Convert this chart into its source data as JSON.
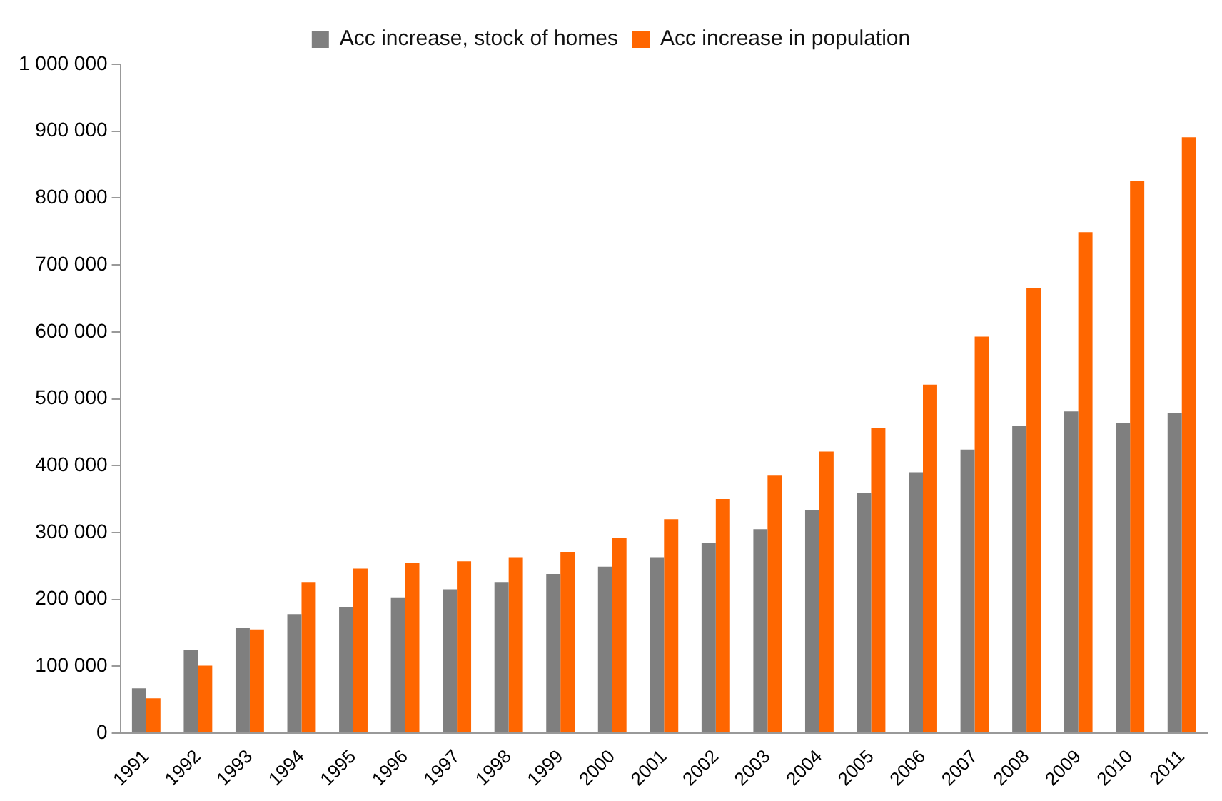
{
  "chart_data": {
    "type": "bar",
    "categories": [
      "1991",
      "1992",
      "1993",
      "1994",
      "1995",
      "1996",
      "1997",
      "1998",
      "1999",
      "2000",
      "2001",
      "2002",
      "2003",
      "2004",
      "2005",
      "2006",
      "2007",
      "2008",
      "2009",
      "2010",
      "2011"
    ],
    "series": [
      {
        "name": "Acc increase, stock of homes",
        "color": "#7f7f7f",
        "values": [
          67000,
          124000,
          158000,
          178000,
          189000,
          203000,
          215000,
          226000,
          238000,
          249000,
          263000,
          285000,
          305000,
          333000,
          359000,
          390000,
          424000,
          459000,
          481000,
          464000,
          479000
        ]
      },
      {
        "name": "Acc increase in population",
        "color": "#ff6600",
        "values": [
          52000,
          101000,
          155000,
          226000,
          246000,
          254000,
          257000,
          263000,
          271000,
          292000,
          320000,
          350000,
          385000,
          421000,
          456000,
          521000,
          593000,
          666000,
          749000,
          826000,
          891000
        ]
      }
    ],
    "ylim": [
      0,
      1000000
    ],
    "yticks": [
      0,
      {
        "value": 100000,
        "label": "100 000"
      },
      {
        "value": 200000,
        "label": "200 000"
      },
      {
        "value": 300000,
        "label": "300 000"
      },
      {
        "value": 400000,
        "label": "400 000"
      },
      {
        "value": 500000,
        "label": "500 000"
      },
      {
        "value": 600000,
        "label": "600 000"
      },
      {
        "value": 700000,
        "label": "700 000"
      },
      {
        "value": 800000,
        "label": "800 000"
      },
      {
        "value": 900000,
        "label": "900 000"
      },
      {
        "value": 1000000,
        "label": "1 000 000"
      }
    ],
    "grid": false,
    "legend": "top"
  }
}
